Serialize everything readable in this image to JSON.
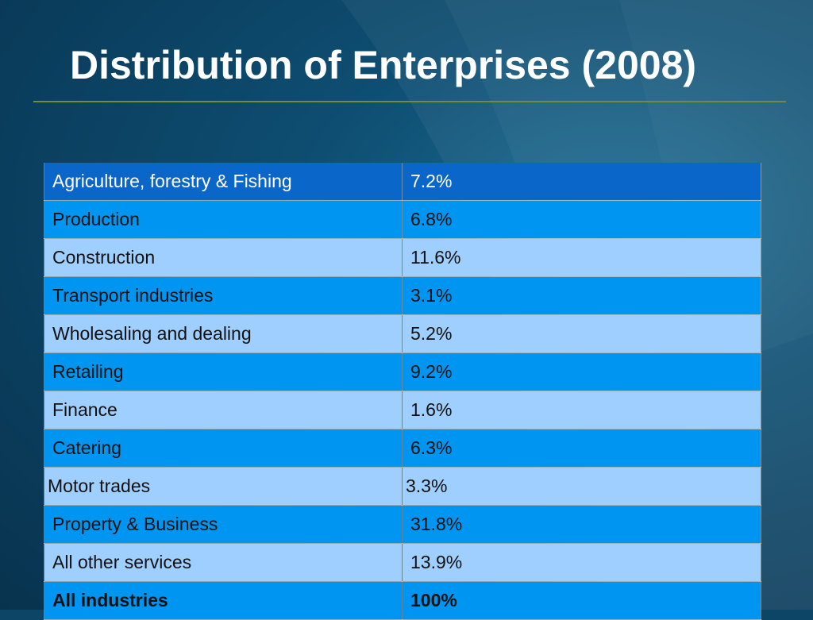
{
  "slide": {
    "title": "Distribution of Enterprises (2008)"
  },
  "colors": {
    "background": "#0d4566",
    "title_text": "#ffffff",
    "rule": "#6f8d3c",
    "header_row": "#0a66c8",
    "dark_row": "#0095f0",
    "light_row": "#9fcfff"
  },
  "table": {
    "rows": [
      {
        "industry": "Agriculture, forestry & Fishing",
        "share": "7.2%"
      },
      {
        "industry": "Production",
        "share": "6.8%"
      },
      {
        "industry": "Construction",
        "share": "11.6%"
      },
      {
        "industry": "Transport industries",
        "share": "3.1%"
      },
      {
        "industry": "Wholesaling and dealing",
        "share": "5.2%"
      },
      {
        "industry": "Retailing",
        "share": "9.2%"
      },
      {
        "industry": "Finance",
        "share": "1.6%"
      },
      {
        "industry": "Catering",
        "share": "6.3%"
      },
      {
        "industry": "Motor trades",
        "share": "3.3%"
      },
      {
        "industry": "Property & Business",
        "share": "31.8%"
      },
      {
        "industry": "All other services",
        "share": "13.9%"
      },
      {
        "industry": "All industries",
        "share": "100%"
      }
    ]
  }
}
